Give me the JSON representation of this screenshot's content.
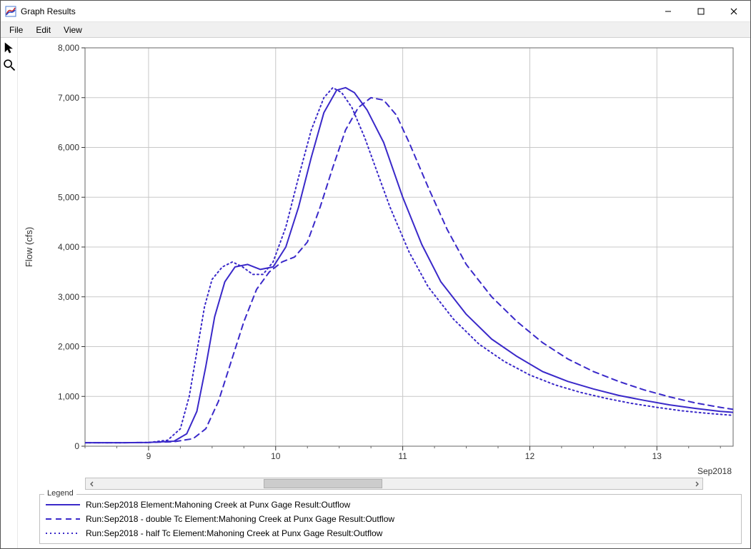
{
  "window": {
    "title": "Graph Results",
    "controls": {
      "minimize": "minimize",
      "maximize": "maximize",
      "close": "close"
    }
  },
  "menu": {
    "items": [
      "File",
      "Edit",
      "View"
    ]
  },
  "tools": {
    "pointer": "pointer",
    "zoom": "zoom"
  },
  "chart": {
    "type": "line",
    "background_color": "#ffffff",
    "plot_border_color": "#666666",
    "grid_color": "#c8c8c8",
    "ylabel": "Flow (cfs)",
    "ylabel_fontsize": 13,
    "xlabel_right": "Sep2018",
    "xlim": [
      8.5,
      13.6
    ],
    "ylim": [
      0,
      8000
    ],
    "yticks": [
      0,
      1000,
      2000,
      3000,
      4000,
      5000,
      6000,
      7000,
      8000
    ],
    "ytick_labels": [
      "0",
      "1,000",
      "2,000",
      "3,000",
      "4,000",
      "5,000",
      "6,000",
      "7,000",
      "8,000"
    ],
    "xticks": [
      9,
      10,
      11,
      12,
      13
    ],
    "xtick_labels": [
      "9",
      "10",
      "11",
      "12",
      "13"
    ],
    "x_minor_step": 0.25,
    "series": [
      {
        "name": "Run:Sep2018 Element:Mahoning Creek at Punx Gage Result:Outflow",
        "color": "#3a29c9",
        "dash": "solid",
        "line_width": 2,
        "points": [
          [
            8.5,
            70
          ],
          [
            8.8,
            70
          ],
          [
            9.0,
            75
          ],
          [
            9.2,
            100
          ],
          [
            9.3,
            250
          ],
          [
            9.38,
            700
          ],
          [
            9.45,
            1600
          ],
          [
            9.52,
            2600
          ],
          [
            9.6,
            3300
          ],
          [
            9.68,
            3600
          ],
          [
            9.78,
            3650
          ],
          [
            9.88,
            3550
          ],
          [
            9.98,
            3600
          ],
          [
            10.08,
            4000
          ],
          [
            10.18,
            4800
          ],
          [
            10.28,
            5800
          ],
          [
            10.38,
            6700
          ],
          [
            10.48,
            7150
          ],
          [
            10.55,
            7200
          ],
          [
            10.62,
            7100
          ],
          [
            10.72,
            6750
          ],
          [
            10.85,
            6100
          ],
          [
            11.0,
            5000
          ],
          [
            11.15,
            4050
          ],
          [
            11.3,
            3300
          ],
          [
            11.5,
            2650
          ],
          [
            11.7,
            2150
          ],
          [
            11.9,
            1800
          ],
          [
            12.1,
            1500
          ],
          [
            12.3,
            1300
          ],
          [
            12.5,
            1150
          ],
          [
            12.7,
            1020
          ],
          [
            12.9,
            920
          ],
          [
            13.1,
            830
          ],
          [
            13.3,
            760
          ],
          [
            13.5,
            700
          ],
          [
            13.6,
            680
          ]
        ]
      },
      {
        "name": "Run:Sep2018 - double Tc Element:Mahoning Creek at Punx Gage Result:Outflow",
        "color": "#3a29c9",
        "dash": "8,6",
        "line_width": 2,
        "points": [
          [
            8.5,
            70
          ],
          [
            8.8,
            70
          ],
          [
            9.0,
            75
          ],
          [
            9.2,
            90
          ],
          [
            9.35,
            150
          ],
          [
            9.45,
            350
          ],
          [
            9.55,
            900
          ],
          [
            9.65,
            1700
          ],
          [
            9.75,
            2500
          ],
          [
            9.85,
            3150
          ],
          [
            9.95,
            3500
          ],
          [
            10.05,
            3700
          ],
          [
            10.15,
            3800
          ],
          [
            10.25,
            4100
          ],
          [
            10.35,
            4800
          ],
          [
            10.45,
            5600
          ],
          [
            10.55,
            6350
          ],
          [
            10.65,
            6800
          ],
          [
            10.75,
            7000
          ],
          [
            10.85,
            6950
          ],
          [
            10.95,
            6650
          ],
          [
            11.05,
            6100
          ],
          [
            11.2,
            5200
          ],
          [
            11.35,
            4350
          ],
          [
            11.5,
            3650
          ],
          [
            11.7,
            3000
          ],
          [
            11.9,
            2500
          ],
          [
            12.1,
            2080
          ],
          [
            12.3,
            1750
          ],
          [
            12.5,
            1500
          ],
          [
            12.7,
            1300
          ],
          [
            12.9,
            1130
          ],
          [
            13.1,
            990
          ],
          [
            13.3,
            870
          ],
          [
            13.5,
            780
          ],
          [
            13.6,
            740
          ]
        ]
      },
      {
        "name": "Run:Sep2018 - half Tc Element:Mahoning Creek at Punx Gage Result:Outflow",
        "color": "#3a29c9",
        "dash": "2,4",
        "line_width": 2,
        "points": [
          [
            8.5,
            70
          ],
          [
            8.8,
            70
          ],
          [
            9.0,
            75
          ],
          [
            9.15,
            120
          ],
          [
            9.25,
            350
          ],
          [
            9.32,
            1000
          ],
          [
            9.38,
            1900
          ],
          [
            9.44,
            2800
          ],
          [
            9.5,
            3350
          ],
          [
            9.58,
            3600
          ],
          [
            9.66,
            3700
          ],
          [
            9.74,
            3600
          ],
          [
            9.82,
            3450
          ],
          [
            9.9,
            3450
          ],
          [
            9.98,
            3700
          ],
          [
            10.08,
            4400
          ],
          [
            10.18,
            5400
          ],
          [
            10.28,
            6350
          ],
          [
            10.38,
            7000
          ],
          [
            10.45,
            7200
          ],
          [
            10.52,
            7100
          ],
          [
            10.6,
            6800
          ],
          [
            10.7,
            6200
          ],
          [
            10.8,
            5500
          ],
          [
            10.9,
            4800
          ],
          [
            11.05,
            3900
          ],
          [
            11.2,
            3200
          ],
          [
            11.4,
            2550
          ],
          [
            11.6,
            2050
          ],
          [
            11.8,
            1700
          ],
          [
            12.0,
            1430
          ],
          [
            12.2,
            1230
          ],
          [
            12.4,
            1080
          ],
          [
            12.6,
            960
          ],
          [
            12.8,
            860
          ],
          [
            13.0,
            780
          ],
          [
            13.2,
            710
          ],
          [
            13.4,
            660
          ],
          [
            13.6,
            620
          ]
        ]
      }
    ]
  },
  "scrollbar": {
    "thumb_left_pct": 28,
    "thumb_width_pct": 20
  },
  "legend": {
    "title": "Legend",
    "items": [
      {
        "dash": "solid",
        "color": "#3a29c9",
        "label": "Run:Sep2018 Element:Mahoning Creek at Punx Gage Result:Outflow"
      },
      {
        "dash": "8,6",
        "color": "#3a29c9",
        "label": "Run:Sep2018 - double Tc Element:Mahoning Creek at Punx Gage Result:Outflow"
      },
      {
        "dash": "2,4",
        "color": "#3a29c9",
        "label": "Run:Sep2018 - half Tc Element:Mahoning Creek at Punx Gage Result:Outflow"
      }
    ]
  }
}
